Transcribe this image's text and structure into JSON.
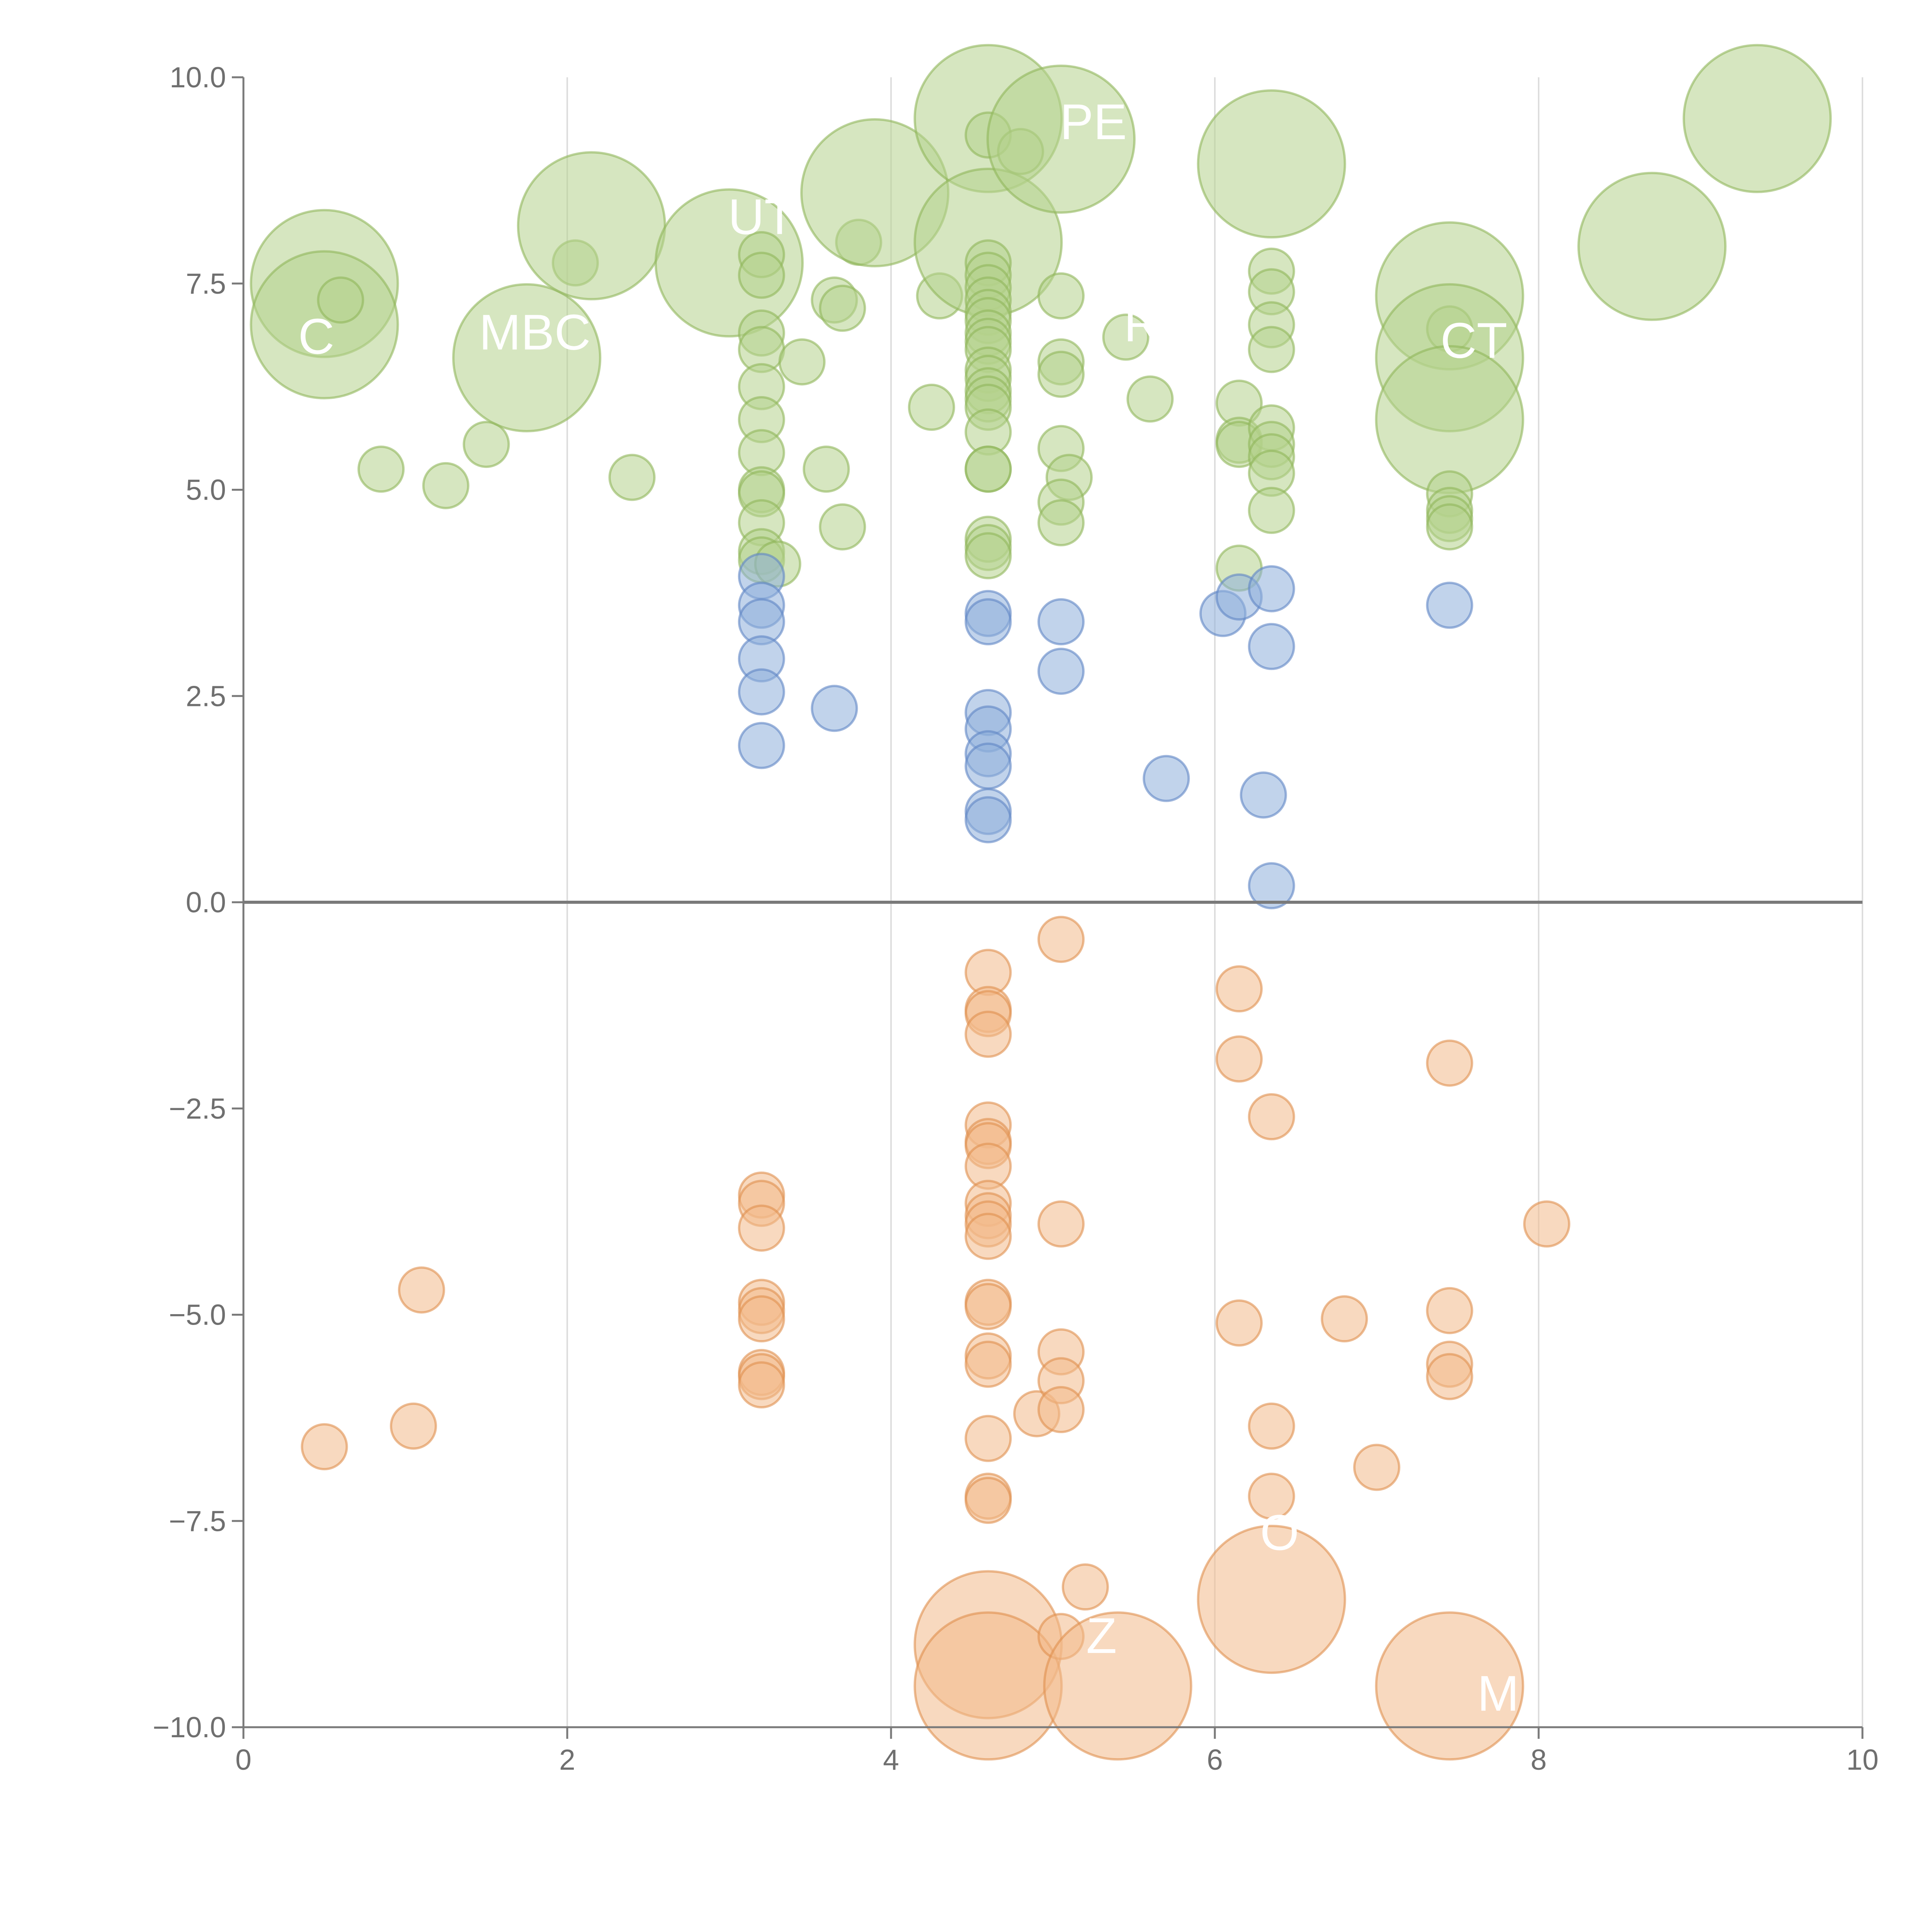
{
  "colors": {
    "positive_high": "#b5d18c",
    "positive_high_stroke": "#8fb55a",
    "positive_mid": "#8eaedb",
    "positive_mid_stroke": "#5f86c4",
    "negative": "#f2b98a",
    "negative_stroke": "#e08f4e",
    "axis": "#7a7a7a",
    "grid": "#dddddd",
    "annotation": "#ffffff"
  },
  "chart_data": {
    "type": "scatter",
    "title": "",
    "xlabel": "",
    "ylabel": "",
    "xlim": [
      0,
      10
    ],
    "ylim": [
      -10,
      10
    ],
    "grid": "vertical",
    "x_ticks": [
      "0",
      "2",
      "4",
      "6",
      "8",
      "10"
    ],
    "y_ticks": [
      "10.0",
      "7.5",
      "5.0",
      "2.5",
      "0.0",
      "−2.5",
      "−5.0",
      "−7.5",
      "−10.0"
    ],
    "x_tick_values": [
      0,
      2,
      4,
      6,
      8,
      10
    ],
    "y_tick_values": [
      10,
      7.5,
      5,
      2.5,
      0,
      -2.5,
      -5,
      -7.5,
      -10
    ],
    "point_size_levels": [
      "small",
      "large"
    ],
    "series": [
      {
        "color_key": "positive_high",
        "points": [
          [
            0.5,
            7.5,
            1
          ],
          [
            0.5,
            7.0,
            1
          ],
          [
            0.6,
            7.3,
            0
          ],
          [
            0.85,
            5.25,
            0
          ],
          [
            1.25,
            5.05,
            0
          ],
          [
            1.5,
            5.55,
            0
          ],
          [
            1.75,
            6.6,
            1
          ],
          [
            2.05,
            7.75,
            0
          ],
          [
            2.15,
            8.2,
            1
          ],
          [
            2.4,
            5.15,
            0
          ],
          [
            3.0,
            7.75,
            1
          ],
          [
            3.2,
            7.85,
            0
          ],
          [
            3.2,
            7.6,
            0
          ],
          [
            3.2,
            6.9,
            0
          ],
          [
            3.2,
            6.7,
            0
          ],
          [
            3.2,
            6.25,
            0
          ],
          [
            3.2,
            5.85,
            0
          ],
          [
            3.2,
            5.45,
            0
          ],
          [
            3.2,
            5.0,
            0
          ],
          [
            3.2,
            4.95,
            0
          ],
          [
            3.2,
            4.6,
            0
          ],
          [
            3.2,
            4.25,
            0
          ],
          [
            3.2,
            4.15,
            0
          ],
          [
            3.3,
            4.1,
            0
          ],
          [
            3.45,
            6.55,
            0
          ],
          [
            3.6,
            5.25,
            0
          ],
          [
            3.65,
            7.3,
            0
          ],
          [
            3.7,
            7.2,
            0
          ],
          [
            3.7,
            4.55,
            0
          ],
          [
            3.8,
            8.0,
            0
          ],
          [
            3.9,
            8.6,
            1
          ],
          [
            4.25,
            6.0,
            0
          ],
          [
            4.3,
            7.35,
            0
          ],
          [
            4.6,
            9.5,
            1
          ],
          [
            4.6,
            9.3,
            0
          ],
          [
            4.6,
            8.0,
            1
          ],
          [
            4.6,
            7.75,
            0
          ],
          [
            4.6,
            7.6,
            0
          ],
          [
            4.6,
            7.45,
            0
          ],
          [
            4.6,
            7.3,
            0
          ],
          [
            4.6,
            7.15,
            0
          ],
          [
            4.6,
            7.05,
            0
          ],
          [
            4.6,
            6.9,
            0
          ],
          [
            4.6,
            6.8,
            0
          ],
          [
            4.6,
            6.7,
            0
          ],
          [
            4.6,
            6.45,
            0
          ],
          [
            4.6,
            6.35,
            0
          ],
          [
            4.6,
            6.2,
            0
          ],
          [
            4.6,
            6.1,
            0
          ],
          [
            4.6,
            6.0,
            0
          ],
          [
            4.6,
            5.7,
            0
          ],
          [
            4.6,
            5.25,
            0
          ],
          [
            4.6,
            5.25,
            0
          ],
          [
            4.6,
            4.4,
            0
          ],
          [
            4.6,
            4.3,
            0
          ],
          [
            4.6,
            4.2,
            0
          ],
          [
            4.8,
            9.1,
            0
          ],
          [
            5.05,
            9.25,
            1
          ],
          [
            5.05,
            7.35,
            0
          ],
          [
            5.05,
            6.55,
            0
          ],
          [
            5.05,
            6.4,
            0
          ],
          [
            5.05,
            5.5,
            0
          ],
          [
            5.1,
            5.15,
            0
          ],
          [
            5.05,
            4.85,
            0
          ],
          [
            5.05,
            4.6,
            0
          ],
          [
            5.45,
            6.85,
            0
          ],
          [
            5.6,
            6.1,
            0
          ],
          [
            6.15,
            6.05,
            0
          ],
          [
            6.15,
            5.6,
            0
          ],
          [
            6.15,
            5.55,
            0
          ],
          [
            6.15,
            4.05,
            0
          ],
          [
            6.35,
            8.95,
            1
          ],
          [
            6.35,
            7.65,
            0
          ],
          [
            6.35,
            7.4,
            0
          ],
          [
            6.35,
            7.0,
            0
          ],
          [
            6.35,
            6.7,
            0
          ],
          [
            6.35,
            5.75,
            0
          ],
          [
            6.35,
            5.55,
            0
          ],
          [
            6.35,
            5.4,
            0
          ],
          [
            6.35,
            5.2,
            0
          ],
          [
            6.35,
            4.75,
            0
          ],
          [
            7.45,
            7.35,
            1
          ],
          [
            7.45,
            6.95,
            0
          ],
          [
            7.45,
            6.6,
            1
          ],
          [
            7.45,
            5.85,
            1
          ],
          [
            7.45,
            4.95,
            0
          ],
          [
            7.45,
            4.75,
            0
          ],
          [
            7.45,
            4.65,
            0
          ],
          [
            7.45,
            4.55,
            0
          ],
          [
            8.7,
            7.95,
            1
          ],
          [
            9.35,
            9.5,
            1
          ]
        ]
      },
      {
        "color_key": "positive_mid",
        "points": [
          [
            3.2,
            3.95,
            0
          ],
          [
            3.2,
            3.6,
            0
          ],
          [
            3.2,
            3.4,
            0
          ],
          [
            3.2,
            2.95,
            0
          ],
          [
            3.2,
            2.55,
            0
          ],
          [
            3.2,
            1.9,
            0
          ],
          [
            3.65,
            2.35,
            0
          ],
          [
            4.6,
            3.5,
            0
          ],
          [
            4.6,
            3.4,
            0
          ],
          [
            4.6,
            2.3,
            0
          ],
          [
            4.6,
            2.1,
            0
          ],
          [
            4.6,
            1.8,
            0
          ],
          [
            4.6,
            1.65,
            0
          ],
          [
            4.6,
            1.1,
            0
          ],
          [
            4.6,
            1.0,
            0
          ],
          [
            5.05,
            3.4,
            0
          ],
          [
            5.05,
            2.8,
            0
          ],
          [
            5.7,
            1.5,
            0
          ],
          [
            6.05,
            3.5,
            0
          ],
          [
            6.15,
            3.7,
            0
          ],
          [
            6.3,
            1.3,
            0
          ],
          [
            6.35,
            3.8,
            0
          ],
          [
            6.35,
            3.1,
            0
          ],
          [
            6.35,
            0.2,
            0
          ],
          [
            7.45,
            3.6,
            0
          ]
        ]
      },
      {
        "color_key": "negative",
        "points": [
          [
            0.5,
            -6.6,
            0
          ],
          [
            1.05,
            -6.35,
            0
          ],
          [
            1.1,
            -4.7,
            0
          ],
          [
            3.2,
            -3.55,
            0
          ],
          [
            3.2,
            -3.65,
            0
          ],
          [
            3.2,
            -3.95,
            0
          ],
          [
            3.2,
            -4.85,
            0
          ],
          [
            3.2,
            -4.95,
            0
          ],
          [
            3.2,
            -5.05,
            0
          ],
          [
            3.2,
            -5.7,
            0
          ],
          [
            3.2,
            -5.75,
            0
          ],
          [
            3.2,
            -5.85,
            0
          ],
          [
            4.6,
            -0.85,
            0
          ],
          [
            4.6,
            -1.3,
            0
          ],
          [
            4.6,
            -1.35,
            0
          ],
          [
            4.6,
            -1.6,
            0
          ],
          [
            4.6,
            -2.7,
            0
          ],
          [
            4.6,
            -2.9,
            0
          ],
          [
            4.6,
            -2.95,
            0
          ],
          [
            4.6,
            -3.2,
            0
          ],
          [
            4.6,
            -3.65,
            0
          ],
          [
            4.6,
            -3.8,
            0
          ],
          [
            4.6,
            -3.9,
            0
          ],
          [
            4.6,
            -4.05,
            0
          ],
          [
            4.6,
            -4.85,
            0
          ],
          [
            4.6,
            -4.9,
            0
          ],
          [
            4.6,
            -5.5,
            0
          ],
          [
            4.6,
            -5.6,
            0
          ],
          [
            4.6,
            -6.5,
            0
          ],
          [
            4.6,
            -7.2,
            0
          ],
          [
            4.6,
            -7.25,
            0
          ],
          [
            4.6,
            -9.0,
            1
          ],
          [
            4.6,
            -9.5,
            1
          ],
          [
            4.9,
            -6.2,
            0
          ],
          [
            5.05,
            -0.45,
            0
          ],
          [
            5.05,
            -3.9,
            0
          ],
          [
            5.05,
            -5.45,
            0
          ],
          [
            5.05,
            -5.8,
            0
          ],
          [
            5.05,
            -6.15,
            0
          ],
          [
            5.05,
            -8.9,
            0
          ],
          [
            5.2,
            -8.3,
            0
          ],
          [
            5.4,
            -9.5,
            1
          ],
          [
            6.15,
            -1.05,
            0
          ],
          [
            6.15,
            -1.9,
            0
          ],
          [
            6.15,
            -5.1,
            0
          ],
          [
            6.35,
            -2.6,
            0
          ],
          [
            6.35,
            -6.35,
            0
          ],
          [
            6.35,
            -7.2,
            0
          ],
          [
            6.35,
            -8.45,
            1
          ],
          [
            6.8,
            -5.05,
            0
          ],
          [
            7.0,
            -6.85,
            0
          ],
          [
            7.45,
            -1.95,
            0
          ],
          [
            7.45,
            -4.95,
            0
          ],
          [
            7.45,
            -5.6,
            0
          ],
          [
            7.45,
            -5.75,
            0
          ],
          [
            7.45,
            -9.5,
            1
          ],
          [
            8.05,
            -3.9,
            0
          ]
        ]
      }
    ],
    "annotations": [
      {
        "text": "PE",
        "x": 5.25,
        "y": 9.25
      },
      {
        "text": "UT",
        "x": 3.2,
        "y": 8.1
      },
      {
        "text": "MBC",
        "x": 1.8,
        "y": 6.7
      },
      {
        "text": "C",
        "x": 0.45,
        "y": 6.65
      },
      {
        "text": "R",
        "x": 5.55,
        "y": 6.8
      },
      {
        "text": "CT",
        "x": 7.6,
        "y": 6.6
      },
      {
        "text": "O",
        "x": 6.4,
        "y": -7.85
      },
      {
        "text": "Z",
        "x": 5.3,
        "y": -9.1
      },
      {
        "text": "M",
        "x": 7.75,
        "y": -9.8
      }
    ]
  }
}
